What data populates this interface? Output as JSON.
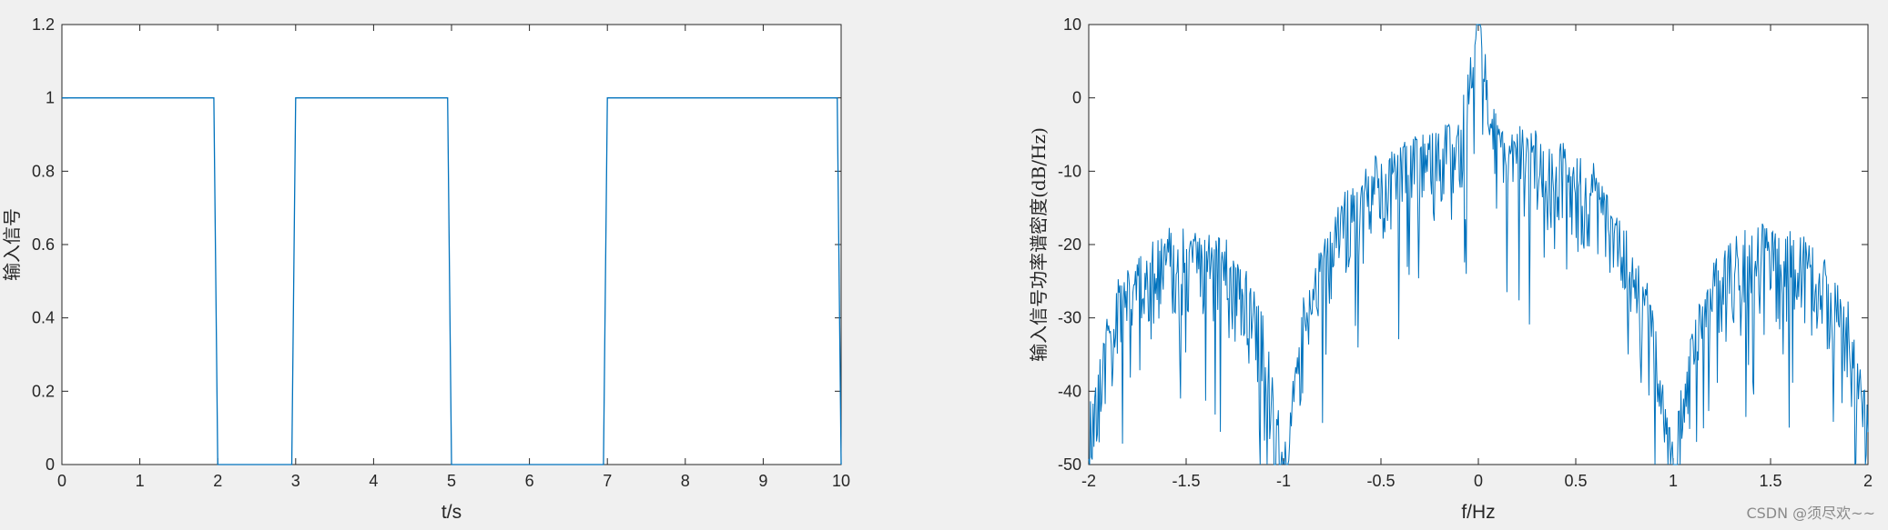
{
  "chart_data": [
    {
      "type": "line",
      "title": "",
      "xlabel": "t/s",
      "ylabel": "输入信号",
      "xlim": [
        0,
        10
      ],
      "ylim": [
        0,
        1.2
      ],
      "xticks": [
        "0",
        "1",
        "2",
        "3",
        "4",
        "5",
        "6",
        "7",
        "8",
        "9",
        "10"
      ],
      "yticks": [
        "0",
        "0.2",
        "0.4",
        "0.6",
        "0.8",
        "1",
        "1.2"
      ],
      "grid": false,
      "line_color": "#0072BD",
      "series": [
        {
          "x": [
            0,
            1.95,
            2.0,
            2.95,
            3.0,
            4.95,
            5.0,
            6.95,
            7.0,
            9.95,
            10.0
          ],
          "y": [
            1,
            1,
            0,
            0,
            1,
            1,
            0,
            0,
            1,
            1,
            0
          ]
        }
      ]
    },
    {
      "type": "line",
      "title": "",
      "xlabel": "f/Hz",
      "ylabel": "输入信号功率谱密度(dB/Hz)",
      "xlim": [
        -2,
        2
      ],
      "ylim": [
        -50,
        10
      ],
      "xticks": [
        "-2",
        "-1.5",
        "-1",
        "-0.5",
        "0",
        "0.5",
        "1",
        "1.5",
        "2"
      ],
      "yticks": [
        "-50",
        "-40",
        "-30",
        "-20",
        "-10",
        "0",
        "10"
      ],
      "grid": false,
      "line_color": "#0072BD",
      "description_points": {
        "x": [
          -2.0,
          -1.9,
          -1.8,
          -1.7,
          -1.6,
          -1.5,
          -1.4,
          -1.3,
          -1.2,
          -1.1,
          -1.0,
          -0.9,
          -0.8,
          -0.7,
          -0.6,
          -0.5,
          -0.4,
          -0.3,
          -0.2,
          -0.1,
          0.0,
          0.1,
          0.2,
          0.3,
          0.4,
          0.5,
          0.6,
          0.7,
          0.8,
          0.9,
          1.0,
          1.1,
          1.2,
          1.3,
          1.4,
          1.5,
          1.6,
          1.7,
          1.8,
          1.9,
          2.0
        ],
        "y": [
          -45,
          -30,
          -25,
          -22,
          -20,
          -20,
          -20,
          -22,
          -25,
          -32,
          -50,
          -30,
          -22,
          -16,
          -12,
          -10,
          -8,
          -7,
          -6,
          -6,
          10,
          -6,
          -6,
          -7,
          -8,
          -10,
          -12,
          -16,
          -22,
          -30,
          -50,
          -32,
          -25,
          -22,
          -20,
          -20,
          -20,
          -22,
          -25,
          -30,
          -45
        ]
      }
    }
  ],
  "watermark": "CSDN @须尽欢~~"
}
